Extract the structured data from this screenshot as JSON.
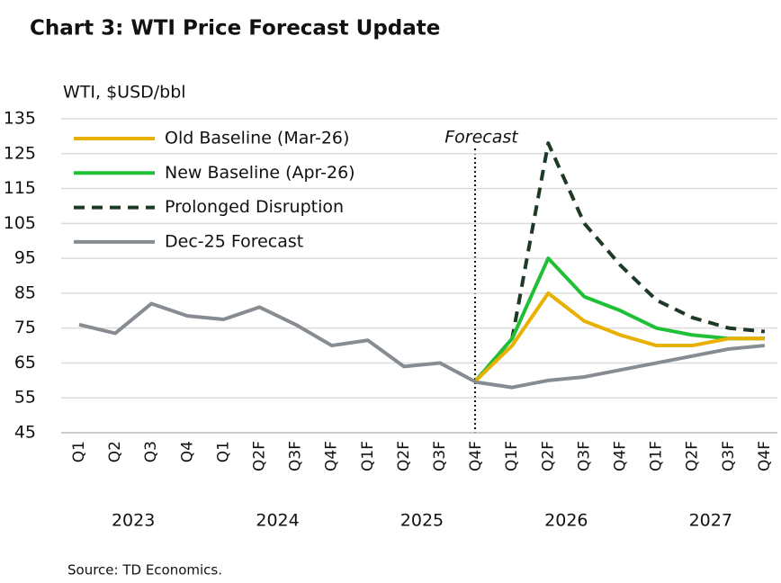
{
  "chart_data": {
    "type": "line",
    "title": "Chart 3: WTI Price Forecast Update",
    "y_label": "WTI, $USD/bbl",
    "annotation": "Forecast",
    "source": "Source: TD Economics.",
    "categories": [
      "Q1",
      "Q2",
      "Q3",
      "Q4",
      "Q1",
      "Q2F",
      "Q3F",
      "Q4F",
      "Q1F",
      "Q2F",
      "Q3F",
      "Q4F",
      "Q1F",
      "Q2F",
      "Q3F",
      "Q4F",
      "Q1F",
      "Q2F",
      "Q3F",
      "Q4F"
    ],
    "year_groups": [
      "2023",
      "2024",
      "2025",
      "2026",
      "2027"
    ],
    "series": [
      {
        "name": "Old Baseline (Mar-26)",
        "color": "#e8b100",
        "dashed": false,
        "values": [
          null,
          null,
          null,
          null,
          null,
          null,
          null,
          null,
          null,
          null,
          null,
          60,
          70,
          85,
          77,
          73,
          70,
          70,
          72,
          72
        ]
      },
      {
        "name": "New Baseline (Apr-26)",
        "color": "#1fbf36",
        "dashed": false,
        "values": [
          null,
          null,
          null,
          null,
          null,
          null,
          null,
          null,
          null,
          null,
          null,
          60,
          72,
          95,
          84,
          80,
          75,
          73,
          72,
          72
        ]
      },
      {
        "name": "Prolonged Disruption",
        "color": "#1e3a26",
        "dashed": true,
        "values": [
          null,
          null,
          null,
          null,
          null,
          null,
          null,
          null,
          null,
          null,
          null,
          60,
          72,
          128,
          105,
          93,
          83,
          78,
          75,
          74
        ]
      },
      {
        "name": "Dec-25 Forecast",
        "color": "#868c92",
        "dashed": false,
        "values": [
          76,
          73.5,
          82,
          78.5,
          77.5,
          81,
          76,
          70,
          71.5,
          64,
          65,
          59.5,
          58,
          60,
          61,
          63,
          65,
          67,
          69,
          70
        ]
      }
    ],
    "ylim": [
      45,
      135
    ],
    "yticks": [
      45,
      55,
      65,
      75,
      85,
      95,
      105,
      115,
      125,
      135
    ],
    "grid": true
  }
}
